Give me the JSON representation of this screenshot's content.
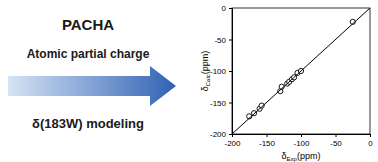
{
  "chart_data": {
    "type": "scatter",
    "x_label": "δExp(ppm)",
    "y_label": "δCalc(ppm)",
    "annotations": [
      "PACHA",
      "Atomic partial charge",
      "δ(183W) modeling"
    ],
    "xlim": [
      -200,
      0
    ],
    "ylim": [
      -200,
      0
    ],
    "xticks": [
      -200,
      -150,
      -100,
      -50,
      0
    ],
    "yticks": [
      -200,
      -150,
      -100,
      -50,
      0
    ],
    "grid": false,
    "series": [
      {
        "type": "scatter",
        "color": "#000000",
        "marker": "circle",
        "x": [
          -175,
          -168,
          -160,
          -157,
          -130,
          -128,
          -120,
          -117,
          -113,
          -110,
          -105,
          -100,
          -25
        ],
        "values": [
          -172,
          -167,
          -160,
          -155,
          -132,
          -125,
          -120,
          -117,
          -113,
          -110,
          -103,
          -100,
          -22
        ]
      },
      {
        "type": "line",
        "color": "#000000",
        "line_style": "solid",
        "x": [
          -200,
          0
        ],
        "values": [
          -200,
          0
        ]
      }
    ]
  }
}
